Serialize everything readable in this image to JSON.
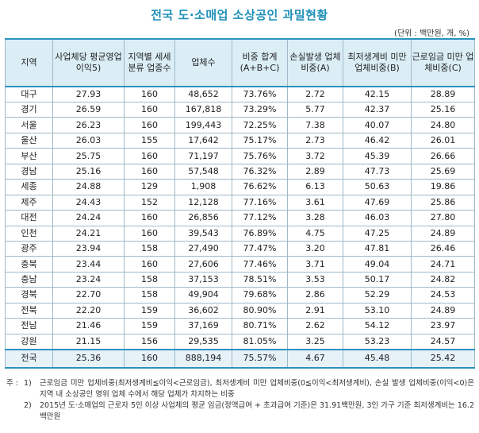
{
  "title": "전국 도·소매업 소상공인 과밀현황",
  "unit": "(단위 : 백만원, 개, %)",
  "headers": [
    "지역",
    "사업체당 평균영업이익5)",
    "지역별 세세분류 업종수",
    "업체수",
    "비중 합계 (A+B+C)",
    "손실발생 업체비중(A)",
    "최저생계비 미만 업체비중(B)",
    "근로임금 미만 업체비중(C)"
  ],
  "rows": [
    [
      "대구",
      "27.93",
      "160",
      "48,652",
      "73.76%",
      "2.72",
      "42.15",
      "28.89"
    ],
    [
      "경기",
      "26.59",
      "160",
      "167,818",
      "73.29%",
      "5.77",
      "42.37",
      "25.16"
    ],
    [
      "서울",
      "26.23",
      "160",
      "199,443",
      "72.25%",
      "7.38",
      "40.07",
      "24.80"
    ],
    [
      "울산",
      "26.03",
      "155",
      "17,642",
      "75.17%",
      "2.73",
      "46.42",
      "26.01"
    ],
    [
      "부산",
      "25.75",
      "160",
      "71,197",
      "75.76%",
      "3.72",
      "45.39",
      "26.66"
    ],
    [
      "경남",
      "25.16",
      "160",
      "57,548",
      "76.32%",
      "2.89",
      "47.73",
      "25.69"
    ],
    [
      "세종",
      "24.88",
      "129",
      "1,908",
      "76.62%",
      "6.13",
      "50.63",
      "19.86"
    ],
    [
      "제주",
      "24.43",
      "152",
      "12,128",
      "77.16%",
      "3.61",
      "47.69",
      "25.86"
    ],
    [
      "대전",
      "24.24",
      "160",
      "26,856",
      "77.12%",
      "3.28",
      "46.03",
      "27.80"
    ],
    [
      "인천",
      "24.21",
      "160",
      "39,543",
      "76.89%",
      "4.75",
      "47.25",
      "24.89"
    ],
    [
      "광주",
      "23.94",
      "158",
      "27,490",
      "77.47%",
      "3.20",
      "47.81",
      "26.46"
    ],
    [
      "충북",
      "23.44",
      "160",
      "27,606",
      "77.46%",
      "3.71",
      "49.04",
      "24.71"
    ],
    [
      "충남",
      "23.24",
      "158",
      "37,153",
      "78.51%",
      "3.53",
      "50.17",
      "24.82"
    ],
    [
      "경북",
      "22.70",
      "158",
      "49,904",
      "79.68%",
      "2.86",
      "52.29",
      "24.53"
    ],
    [
      "전북",
      "22.20",
      "159",
      "36,602",
      "80.90%",
      "2.91",
      "53.10",
      "24.89"
    ],
    [
      "전남",
      "21.46",
      "159",
      "37,169",
      "80.71%",
      "2.62",
      "54.12",
      "23.97"
    ],
    [
      "강원",
      "21.15",
      "156",
      "29,535",
      "81.05%",
      "3.25",
      "53.23",
      "24.57"
    ]
  ],
  "total": [
    "전국",
    "25.36",
    "160",
    "888,194",
    "75.57%",
    "4.67",
    "45.48",
    "25.42"
  ],
  "notes": {
    "mark": "주 :",
    "n1": "1)",
    "t1": "근로임금 미만 업체비중(최저생계비≦이익<근로임금), 최저생계비 미만 업체비중(0≦이익<최저생계비), 손실 발생 업체비중(이익<0)은 지역 내 소상공인 영위 업체 수에서 해당 업체가 차지하는 비중",
    "n2": "2)",
    "t2": "2015년 도·소매업의 근로자 5인 이상 사업체의 평균 임금(정액급여 + 초과급여 기준)은 31.91백만원, 3인 가구 기준 최저생계비는 16.2백만원"
  }
}
